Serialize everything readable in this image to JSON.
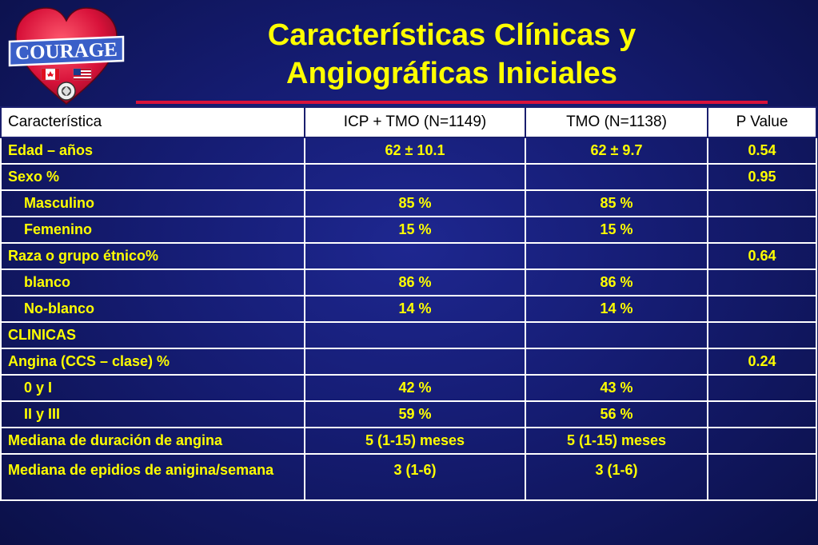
{
  "logo": {
    "text": "COURAGE",
    "icons": [
      "heart-icon",
      "canada-flag-icon",
      "usa-flag-icon",
      "va-seal-icon"
    ],
    "colors": {
      "heart": "#d8123a",
      "banner": "#3a5fc8"
    }
  },
  "title": {
    "line1": "Características Clínicas y",
    "line2": "Angiográficas Iniciales"
  },
  "table": {
    "headers": [
      "Característica",
      "ICP + TMO (N=1149)",
      "TMO (N=1138)",
      "P Value"
    ],
    "rows": [
      {
        "label": "Edad – años",
        "icp": "62 ± 10.1",
        "tmo": "62 ± 9.7",
        "p": "0.54"
      },
      {
        "label": "Sexo %",
        "icp": "",
        "tmo": "",
        "p": "0.95"
      },
      {
        "label": "Masculino",
        "icp": "85 %",
        "tmo": "85 %",
        "p": ""
      },
      {
        "label": "Femenino",
        "icp": "15 %",
        "tmo": "15 %",
        "p": ""
      },
      {
        "label": "Raza o grupo étnico%",
        "icp": "",
        "tmo": "",
        "p": "0.64"
      },
      {
        "label": "blanco",
        "icp": "86 %",
        "tmo": "86 %",
        "p": ""
      },
      {
        "label": "No-blanco",
        "icp": "14 %",
        "tmo": "14 %",
        "p": ""
      },
      {
        "label": "CLINICAS",
        "icp": "",
        "tmo": "",
        "p": ""
      },
      {
        "label": "Angina (CCS – clase) %",
        "icp": "",
        "tmo": "",
        "p": "0.24"
      },
      {
        "label": "0 y I",
        "icp": "42 %",
        "tmo": "43 %",
        "p": ""
      },
      {
        "label": "II y III",
        "icp": "59 %",
        "tmo": "56 %",
        "p": ""
      },
      {
        "label": "Mediana de duración de angina",
        "icp": "5 (1-15) meses",
        "tmo": "5 (1-15) meses",
        "p": ""
      },
      {
        "label": "Mediana de epidios de anigina/semana",
        "icp": "3 (1-6)",
        "tmo": "3 (1-6)",
        "p": ""
      }
    ]
  },
  "colors": {
    "background": "#151c72",
    "title_text": "#ffff00",
    "accent_rule": "#d8123a",
    "cell_text": "#ffff00",
    "header_bg": "#ffffff"
  }
}
